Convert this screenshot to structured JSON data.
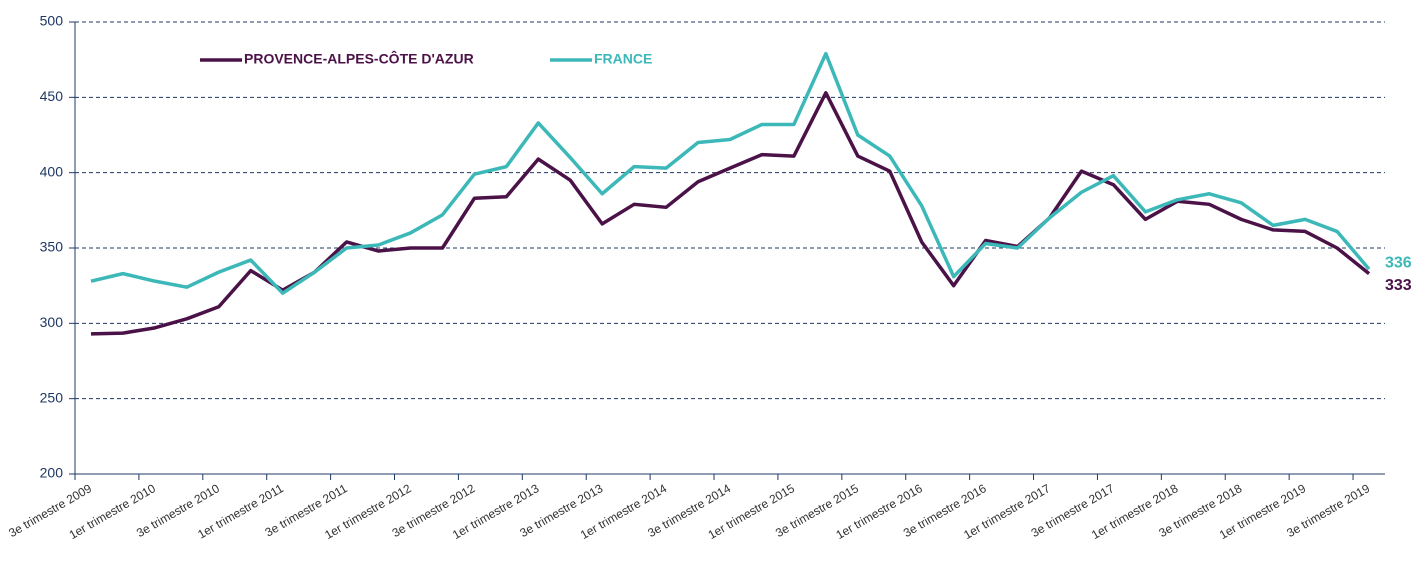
{
  "chart_data": {
    "type": "line",
    "categories": [
      "3e trimestre 2009",
      null,
      "1er trimestre 2010",
      null,
      "3e trimestre 2010",
      null,
      "1er trimestre 2011",
      null,
      "3e trimestre 2011",
      null,
      "1er trimestre 2012",
      null,
      "3e trimestre 2012",
      null,
      "1er trimestre 2013",
      null,
      "3e trimestre 2013",
      null,
      "1er trimestre 2014",
      null,
      "3e trimestre 2014",
      null,
      "1er trimestre 2015",
      null,
      "3e trimestre 2015",
      null,
      "1er trimestre 2016",
      null,
      "3e trimestre 2016",
      null,
      "1er trimestre 2017",
      null,
      "3e trimestre 2017",
      null,
      "1er trimestre 2018",
      null,
      "3e trimestre 2018",
      null,
      "1er trimestre 2019",
      null,
      "3e trimestre 2019"
    ],
    "series": [
      {
        "name": "PROVENCE-ALPES-CÔTE D'AZUR",
        "color": "#4b1248",
        "values": [
          293,
          293.5,
          297,
          303,
          311,
          335,
          322,
          334,
          354,
          348,
          350,
          350,
          383,
          384,
          409,
          395,
          366,
          379,
          377,
          394,
          403,
          412,
          411,
          453,
          411,
          401,
          354,
          325,
          355,
          351,
          370,
          401,
          392,
          369,
          381,
          379,
          369,
          362,
          361,
          350,
          333
        ]
      },
      {
        "name": "FRANCE",
        "color": "#3cb8b8",
        "values": [
          328,
          333,
          328,
          324,
          334,
          342,
          320,
          334,
          350,
          352,
          360,
          372,
          399,
          404,
          433,
          410,
          386,
          404,
          403,
          420,
          422,
          432,
          432,
          479,
          425,
          411,
          378,
          331,
          353,
          350,
          370,
          387,
          398,
          374,
          382,
          386,
          380,
          365,
          369,
          361,
          336
        ]
      }
    ],
    "ylim": [
      200,
      500
    ],
    "yticks": [
      200,
      250,
      300,
      350,
      400,
      450,
      500
    ],
    "grid": true,
    "legend": "top-left"
  }
}
